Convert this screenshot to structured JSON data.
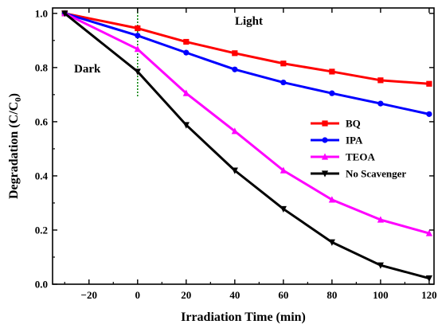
{
  "chart_data": {
    "type": "line",
    "title": "",
    "xlabel": "Irradiation Time (min)",
    "ylabel_main": "Degradation (C/C",
    "ylabel_sub": "0",
    "ylabel_close": ")",
    "xlim": [
      -35,
      122
    ],
    "ylim": [
      0,
      1.02
    ],
    "xticks": [
      -20,
      0,
      20,
      40,
      60,
      80,
      100,
      120
    ],
    "xtick_labels": [
      "−20",
      "0",
      "20",
      "40",
      "60",
      "80",
      "100",
      "120"
    ],
    "yticks": [
      0.0,
      0.2,
      0.4,
      0.6,
      0.8,
      1.0
    ],
    "ytick_labels": [
      "0.0",
      "0.2",
      "0.4",
      "0.6",
      "0.8",
      "1.0"
    ],
    "x": [
      -30,
      0,
      20,
      40,
      60,
      80,
      100,
      120
    ],
    "series": [
      {
        "name": "BQ",
        "color": "#ff0000",
        "marker": "square",
        "values": [
          1.0,
          0.945,
          0.895,
          0.853,
          0.815,
          0.785,
          0.753,
          0.74
        ]
      },
      {
        "name": "IPA",
        "color": "#0000ff",
        "marker": "circle",
        "values": [
          1.0,
          0.918,
          0.855,
          0.793,
          0.745,
          0.705,
          0.667,
          0.628
        ]
      },
      {
        "name": "TEOA",
        "color": "#ff00ff",
        "marker": "triangle-up",
        "values": [
          1.0,
          0.868,
          0.705,
          0.565,
          0.42,
          0.312,
          0.238,
          0.188
        ]
      },
      {
        "name": "No Scavenger",
        "color": "#000000",
        "marker": "triangle-down",
        "values": [
          1.0,
          0.785,
          0.588,
          0.42,
          0.278,
          0.155,
          0.07,
          0.022
        ]
      }
    ],
    "annotations": {
      "dark": "Dark",
      "light": "Light"
    },
    "divider_x": 0,
    "divider_color": "#008000",
    "legend_position": "right",
    "grid": false
  }
}
